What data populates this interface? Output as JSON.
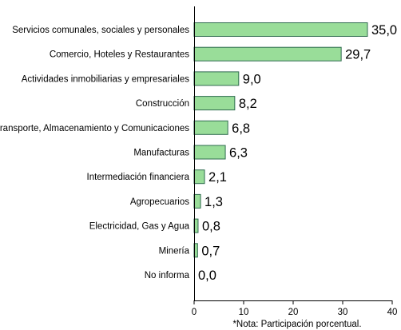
{
  "chart_data": {
    "type": "bar",
    "orientation": "horizontal",
    "categories": [
      "Servicios comunales, sociales y personales",
      "Comercio, Hoteles y Restaurantes",
      "Actividades inmobiliarias y empresariales",
      "Construcción",
      "Transporte, Almacenamiento y Comunicaciones",
      "Manufacturas",
      "Intermediación financiera",
      "Agropecuarios",
      "Electricidad, Gas y Agua",
      "Minería",
      "No informa"
    ],
    "values": [
      35.0,
      29.7,
      9.0,
      8.2,
      6.8,
      6.3,
      2.1,
      1.3,
      0.8,
      0.7,
      0.0
    ],
    "value_labels": [
      "35,0",
      "29,7",
      "9,0",
      "8,2",
      "6,8",
      "6,3",
      "2,1",
      "1,3",
      "0,8",
      "0,7",
      "0,0"
    ],
    "xlim": [
      0,
      40
    ],
    "xticks": [
      0,
      10,
      20,
      30,
      40
    ],
    "xtick_labels": [
      "0",
      "10",
      "20",
      "30",
      "40"
    ],
    "grid": false,
    "legend": "none",
    "bar_color": "#99dd99",
    "bar_edge_color": "#2f6b4f",
    "note": "*Nota: Participación porcentual."
  }
}
